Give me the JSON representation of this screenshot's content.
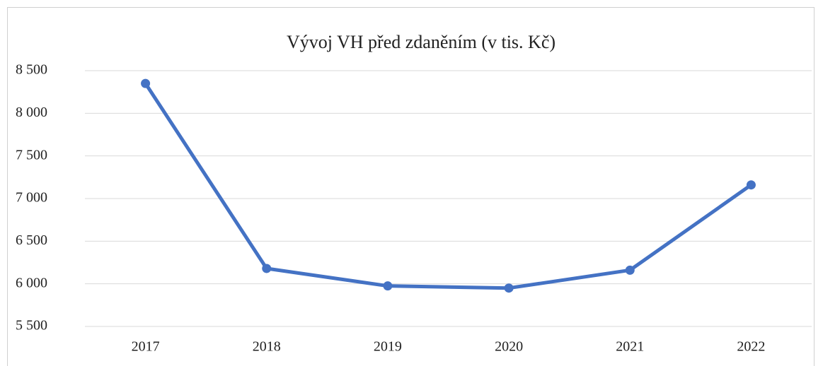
{
  "chart_data": {
    "type": "line",
    "title": "Vývoj VH před zdaněním (v tis. Kč)",
    "categories": [
      "2017",
      "2018",
      "2019",
      "2020",
      "2021",
      "2022"
    ],
    "series": [
      {
        "name": "VH před zdaněním",
        "color": "#4472c4",
        "values": [
          8350,
          6180,
          5975,
          5950,
          6160,
          7160
        ]
      }
    ],
    "ylim": [
      5500,
      8500
    ],
    "yticks": [
      {
        "value": 5500,
        "label": "5 500"
      },
      {
        "value": 6000,
        "label": "6 000"
      },
      {
        "value": 6500,
        "label": "6 500"
      },
      {
        "value": 7000,
        "label": "7 000"
      },
      {
        "value": 7500,
        "label": "7 500"
      },
      {
        "value": 8000,
        "label": "8 000"
      },
      {
        "value": 8500,
        "label": "8 500"
      }
    ],
    "grid": true
  }
}
